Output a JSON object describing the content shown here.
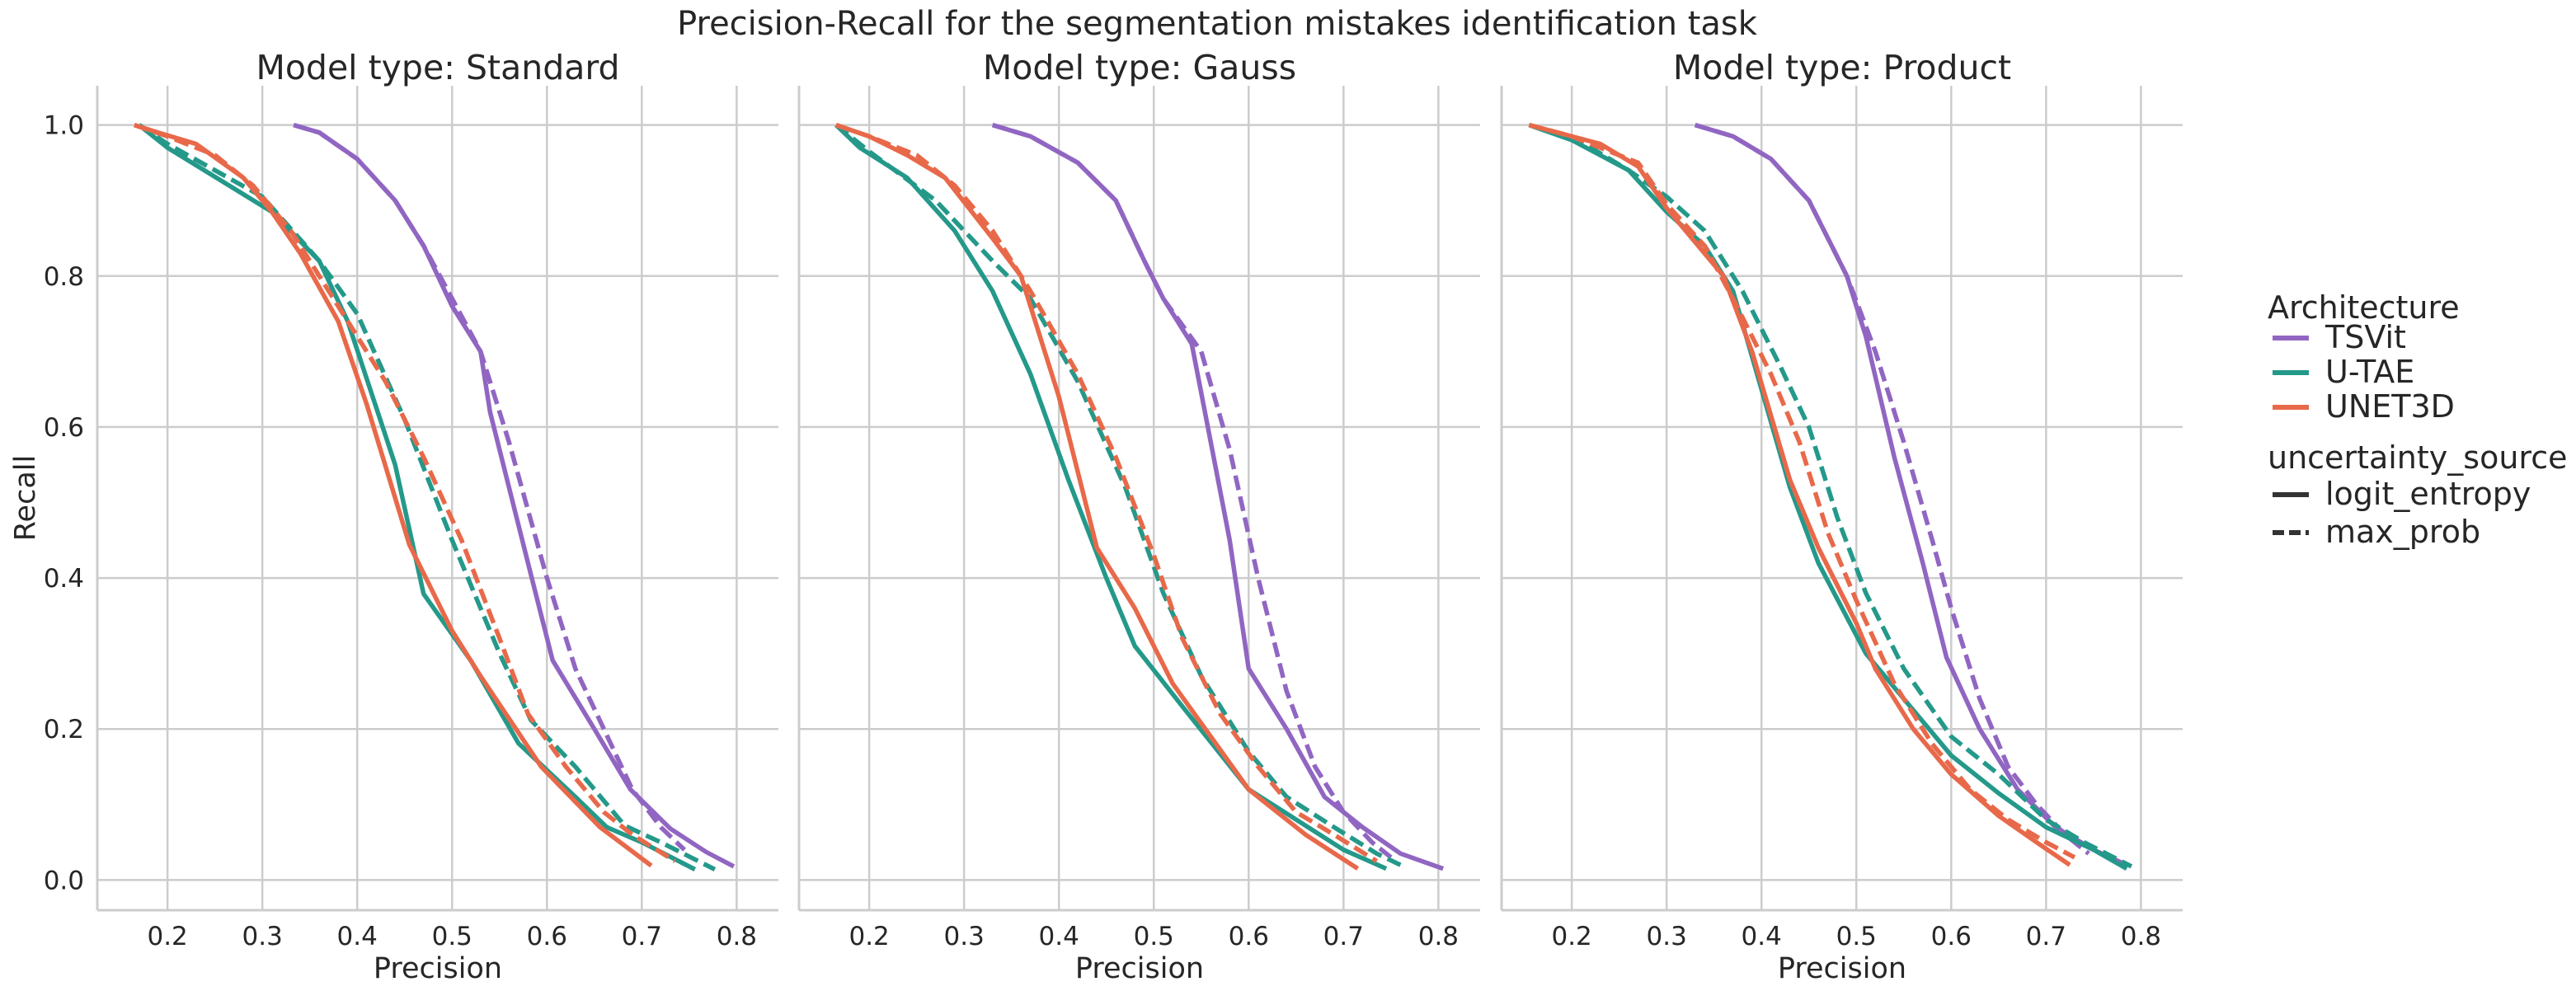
{
  "chart_data": {
    "type": "line",
    "title": "Precision-Recall for the segmentation mistakes identification task",
    "xlabel": "Precision",
    "ylabel": "Recall",
    "xlim": [
      0.126,
      0.844
    ],
    "ylim": [
      -0.04,
      1.052
    ],
    "xticks": [
      "0.2",
      "0.3",
      "0.4",
      "0.5",
      "0.6",
      "0.7",
      "0.8"
    ],
    "yticks": [
      "0.0",
      "0.2",
      "0.4",
      "0.6",
      "0.8",
      "1.0"
    ],
    "grid": true,
    "legend": {
      "placement": "right",
      "hue_title": "Architecture",
      "hue_entries": [
        {
          "name": "TSVit",
          "color": "#9166c2"
        },
        {
          "name": "U-TAE",
          "color": "#24998a"
        },
        {
          "name": "UNET3D",
          "color": "#e8694a"
        }
      ],
      "style_title": "uncertainty_source",
      "style_entries": [
        {
          "name": "logit_entropy",
          "dash": "solid"
        },
        {
          "name": "max_prob",
          "dash": "dashed"
        }
      ]
    },
    "panels": [
      {
        "title": "Model type: Standard",
        "series": [
          {
            "architecture": "TSVit",
            "source": "logit_entropy",
            "x": [
              0.333,
              0.36,
              0.4,
              0.44,
              0.47,
              0.5,
              0.53,
              0.54,
              0.584,
              0.606,
              0.65,
              0.688,
              0.73,
              0.768,
              0.797
            ],
            "y": [
              1.0,
              0.99,
              0.955,
              0.9,
              0.84,
              0.76,
              0.7,
              0.62,
              0.4,
              0.291,
              0.2,
              0.12,
              0.068,
              0.037,
              0.018
            ]
          },
          {
            "architecture": "TSVit",
            "source": "max_prob",
            "x": [
              0.333,
              0.36,
              0.4,
              0.44,
              0.47,
              0.5,
              0.53,
              0.56,
              0.6,
              0.63,
              0.66,
              0.69,
              0.72,
              0.745
            ],
            "y": [
              1.0,
              0.99,
              0.955,
              0.9,
              0.84,
              0.77,
              0.7,
              0.58,
              0.4,
              0.28,
              0.2,
              0.12,
              0.07,
              0.04
            ]
          },
          {
            "architecture": "U-TAE",
            "source": "logit_entropy",
            "x": [
              0.17,
              0.2,
              0.31,
              0.36,
              0.39,
              0.44,
              0.47,
              0.52,
              0.57,
              0.63,
              0.663,
              0.7,
              0.756
            ],
            "y": [
              1.0,
              0.97,
              0.885,
              0.82,
              0.74,
              0.55,
              0.379,
              0.29,
              0.181,
              0.11,
              0.07,
              0.05,
              0.014
            ]
          },
          {
            "architecture": "U-TAE",
            "source": "max_prob",
            "x": [
              0.17,
              0.2,
              0.3,
              0.36,
              0.4,
              0.45,
              0.5,
              0.55,
              0.583,
              0.63,
              0.682,
              0.72,
              0.777
            ],
            "y": [
              1.0,
              0.975,
              0.905,
              0.82,
              0.75,
              0.61,
              0.45,
              0.3,
              0.212,
              0.15,
              0.072,
              0.05,
              0.014
            ]
          },
          {
            "architecture": "UNET3D",
            "source": "logit_entropy",
            "x": [
              0.165,
              0.19,
              0.23,
              0.28,
              0.31,
              0.34,
              0.38,
              0.41,
              0.455,
              0.5,
              0.53,
              0.594,
              0.656,
              0.71
            ],
            "y": [
              1.0,
              0.99,
              0.975,
              0.93,
              0.885,
              0.83,
              0.74,
              0.63,
              0.444,
              0.33,
              0.27,
              0.15,
              0.07,
              0.019
            ]
          },
          {
            "architecture": "UNET3D",
            "source": "max_prob",
            "x": [
              0.165,
              0.2,
              0.25,
              0.29,
              0.33,
              0.37,
              0.43,
              0.47,
              0.51,
              0.55,
              0.58,
              0.62,
              0.66,
              0.69,
              0.735
            ],
            "y": [
              1.0,
              0.985,
              0.96,
              0.92,
              0.86,
              0.78,
              0.66,
              0.56,
              0.45,
              0.32,
              0.22,
              0.15,
              0.09,
              0.06,
              0.025
            ]
          }
        ]
      },
      {
        "title": "Model type: Gauss",
        "series": [
          {
            "architecture": "TSVit",
            "source": "logit_entropy",
            "x": [
              0.33,
              0.37,
              0.42,
              0.46,
              0.49,
              0.51,
              0.54,
              0.56,
              0.58,
              0.6,
              0.64,
              0.68,
              0.72,
              0.76,
              0.805
            ],
            "y": [
              1.0,
              0.985,
              0.95,
              0.9,
              0.82,
              0.77,
              0.71,
              0.58,
              0.45,
              0.28,
              0.2,
              0.11,
              0.07,
              0.035,
              0.015
            ]
          },
          {
            "architecture": "TSVit",
            "source": "max_prob",
            "x": [
              0.33,
              0.37,
              0.42,
              0.46,
              0.49,
              0.51,
              0.55,
              0.58,
              0.61,
              0.64,
              0.67,
              0.7,
              0.73,
              0.75
            ],
            "y": [
              1.0,
              0.985,
              0.95,
              0.9,
              0.82,
              0.77,
              0.7,
              0.57,
              0.4,
              0.25,
              0.15,
              0.09,
              0.05,
              0.03
            ]
          },
          {
            "architecture": "U-TAE",
            "source": "logit_entropy",
            "x": [
              0.165,
              0.19,
              0.24,
              0.29,
              0.33,
              0.37,
              0.41,
              0.45,
              0.48,
              0.53,
              0.6,
              0.65,
              0.7,
              0.745
            ],
            "y": [
              1.0,
              0.97,
              0.93,
              0.86,
              0.78,
              0.67,
              0.53,
              0.4,
              0.31,
              0.23,
              0.12,
              0.08,
              0.04,
              0.015
            ]
          },
          {
            "architecture": "U-TAE",
            "source": "max_prob",
            "x": [
              0.165,
              0.2,
              0.27,
              0.33,
              0.37,
              0.42,
              0.47,
              0.51,
              0.55,
              0.6,
              0.64,
              0.69,
              0.735,
              0.76
            ],
            "y": [
              1.0,
              0.965,
              0.9,
              0.82,
              0.77,
              0.66,
              0.52,
              0.38,
              0.27,
              0.17,
              0.11,
              0.07,
              0.035,
              0.02
            ]
          },
          {
            "architecture": "UNET3D",
            "source": "logit_entropy",
            "x": [
              0.165,
              0.2,
              0.24,
              0.28,
              0.33,
              0.36,
              0.4,
              0.44,
              0.48,
              0.52,
              0.56,
              0.6,
              0.66,
              0.715
            ],
            "y": [
              1.0,
              0.985,
              0.96,
              0.93,
              0.85,
              0.8,
              0.64,
              0.44,
              0.36,
              0.26,
              0.19,
              0.12,
              0.06,
              0.015
            ]
          },
          {
            "architecture": "UNET3D",
            "source": "max_prob",
            "x": [
              0.165,
              0.2,
              0.25,
              0.29,
              0.33,
              0.37,
              0.42,
              0.46,
              0.5,
              0.53,
              0.57,
              0.61,
              0.65,
              0.69,
              0.735
            ],
            "y": [
              1.0,
              0.985,
              0.96,
              0.92,
              0.86,
              0.78,
              0.67,
              0.56,
              0.43,
              0.32,
              0.22,
              0.15,
              0.09,
              0.06,
              0.025
            ]
          }
        ]
      },
      {
        "title": "Model type: Product",
        "series": [
          {
            "architecture": "TSVit",
            "source": "logit_entropy",
            "x": [
              0.33,
              0.37,
              0.41,
              0.45,
              0.49,
              0.51,
              0.54,
              0.57,
              0.595,
              0.63,
              0.67,
              0.71,
              0.75,
              0.785
            ],
            "y": [
              1.0,
              0.985,
              0.955,
              0.9,
              0.8,
              0.72,
              0.56,
              0.42,
              0.295,
              0.2,
              0.12,
              0.07,
              0.04,
              0.02
            ]
          },
          {
            "architecture": "TSVit",
            "source": "max_prob",
            "x": [
              0.33,
              0.37,
              0.41,
              0.45,
              0.49,
              0.52,
              0.55,
              0.58,
              0.6,
              0.63,
              0.66,
              0.69,
              0.72,
              0.745
            ],
            "y": [
              1.0,
              0.985,
              0.955,
              0.9,
              0.8,
              0.7,
              0.58,
              0.45,
              0.36,
              0.24,
              0.15,
              0.1,
              0.06,
              0.035
            ]
          },
          {
            "architecture": "U-TAE",
            "source": "logit_entropy",
            "x": [
              0.155,
              0.2,
              0.26,
              0.3,
              0.34,
              0.37,
              0.4,
              0.43,
              0.46,
              0.51,
              0.55,
              0.6,
              0.65,
              0.7,
              0.75,
              0.785
            ],
            "y": [
              1.0,
              0.98,
              0.94,
              0.885,
              0.84,
              0.78,
              0.65,
              0.52,
              0.42,
              0.3,
              0.24,
              0.165,
              0.115,
              0.07,
              0.04,
              0.015
            ]
          },
          {
            "architecture": "U-TAE",
            "source": "max_prob",
            "x": [
              0.155,
              0.2,
              0.26,
              0.3,
              0.34,
              0.38,
              0.42,
              0.45,
              0.48,
              0.51,
              0.55,
              0.6,
              0.65,
              0.7,
              0.74,
              0.79
            ],
            "y": [
              1.0,
              0.985,
              0.94,
              0.905,
              0.86,
              0.78,
              0.68,
              0.6,
              0.48,
              0.38,
              0.28,
              0.19,
              0.14,
              0.08,
              0.05,
              0.018
            ]
          },
          {
            "architecture": "UNET3D",
            "source": "logit_entropy",
            "x": [
              0.155,
              0.2,
              0.23,
              0.27,
              0.3,
              0.34,
              0.36,
              0.39,
              0.43,
              0.46,
              0.5,
              0.52,
              0.56,
              0.6,
              0.65,
              0.69,
              0.725
            ],
            "y": [
              1.0,
              0.985,
              0.975,
              0.945,
              0.89,
              0.83,
              0.8,
              0.7,
              0.53,
              0.44,
              0.34,
              0.28,
              0.2,
              0.14,
              0.085,
              0.05,
              0.02
            ]
          },
          {
            "architecture": "UNET3D",
            "source": "max_prob",
            "x": [
              0.155,
              0.2,
              0.27,
              0.3,
              0.34,
              0.37,
              0.41,
              0.44,
              0.47,
              0.5,
              0.54,
              0.58,
              0.62,
              0.66,
              0.7,
              0.73
            ],
            "y": [
              1.0,
              0.985,
              0.95,
              0.895,
              0.84,
              0.77,
              0.67,
              0.58,
              0.46,
              0.37,
              0.26,
              0.18,
              0.12,
              0.08,
              0.05,
              0.03
            ]
          }
        ]
      }
    ]
  }
}
